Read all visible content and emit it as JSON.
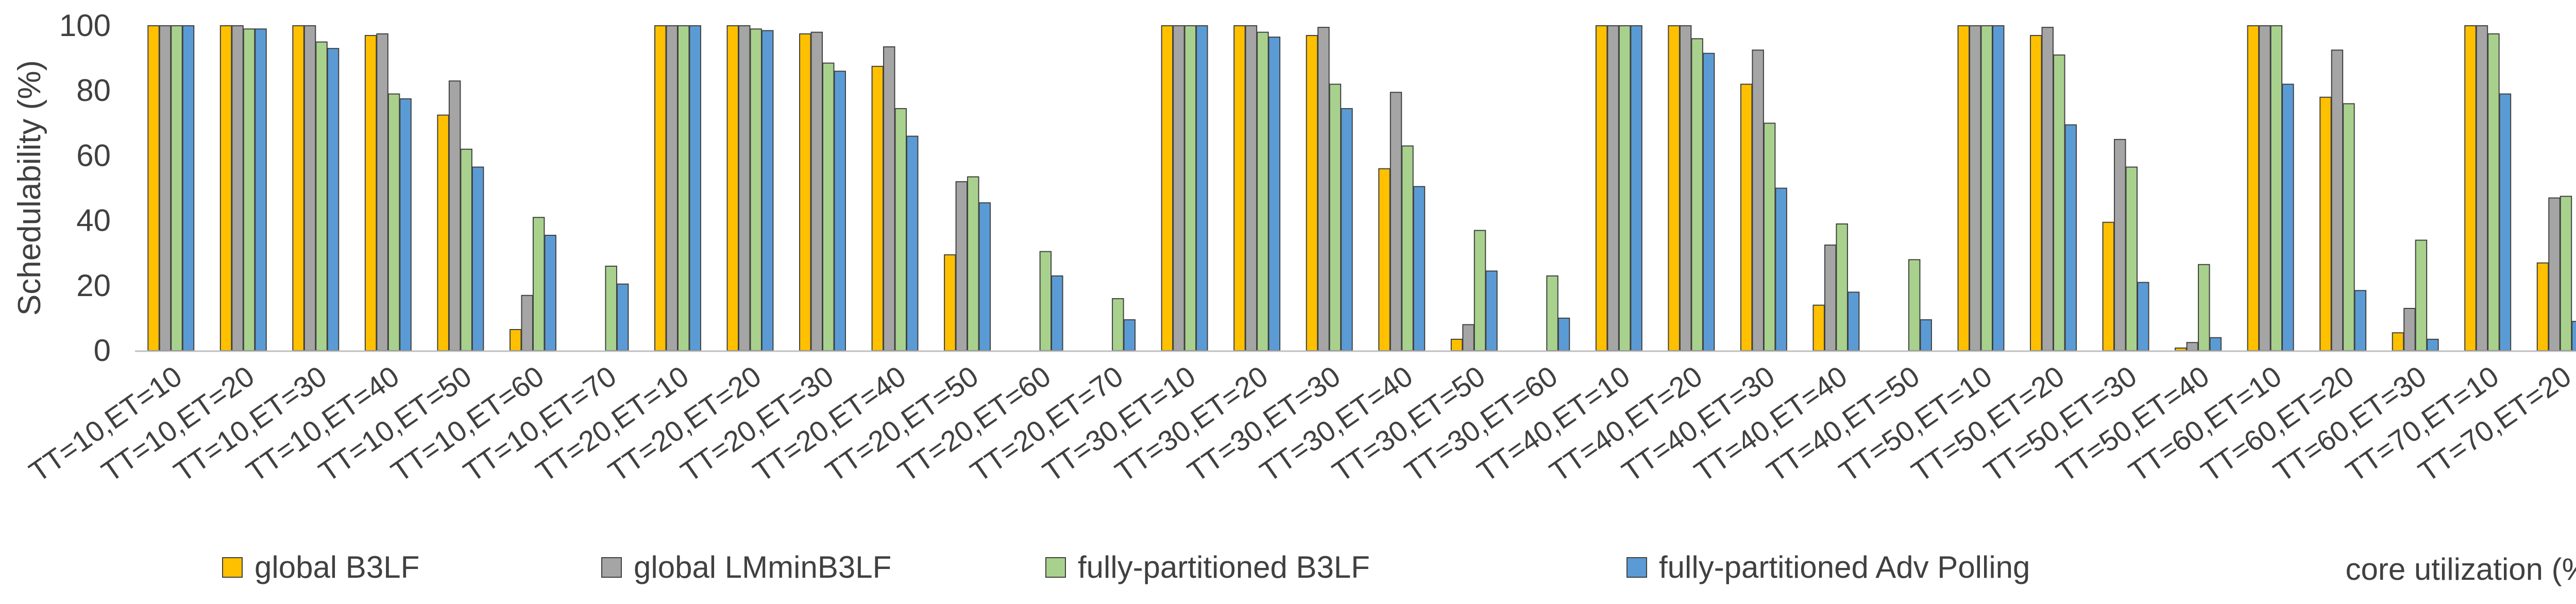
{
  "chart_data": {
    "type": "bar",
    "title": "",
    "xlabel": "core utilization (%)",
    "ylabel": "Schedulability (%)",
    "ylim": [
      0,
      100
    ],
    "yticks": [
      0,
      20,
      40,
      60,
      80,
      100
    ],
    "grid": false,
    "legend_position": "bottom",
    "categories": [
      "TT=10,ET=10",
      "TT=10,ET=20",
      "TT=10,ET=30",
      "TT=10,ET=40",
      "TT=10,ET=50",
      "TT=10,ET=60",
      "TT=10,ET=70",
      "TT=20,ET=10",
      "TT=20,ET=20",
      "TT=20,ET=30",
      "TT=20,ET=40",
      "TT=20,ET=50",
      "TT=20,ET=60",
      "TT=20,ET=70",
      "TT=30,ET=10",
      "TT=30,ET=20",
      "TT=30,ET=30",
      "TT=30,ET=40",
      "TT=30,ET=50",
      "TT=30,ET=60",
      "TT=40,ET=10",
      "TT=40,ET=20",
      "TT=40,ET=30",
      "TT=40,ET=40",
      "TT=40,ET=50",
      "TT=50,ET=10",
      "TT=50,ET=20",
      "TT=50,ET=30",
      "TT=50,ET=40",
      "TT=60,ET=10",
      "TT=60,ET=20",
      "TT=60,ET=30",
      "TT=70,ET=10",
      "TT=70,ET=20"
    ],
    "series": [
      {
        "name": "global B3LF",
        "color": "#FFC000",
        "values": [
          100,
          100,
          100,
          97,
          72.5,
          6.5,
          0,
          100,
          100,
          97.5,
          87.5,
          29.5,
          0,
          0,
          100,
          100,
          97,
          56,
          3.5,
          0,
          100,
          100,
          82,
          14,
          0,
          100,
          97,
          39.5,
          0.8,
          100,
          78,
          5.5,
          100,
          27
        ]
      },
      {
        "name": "global LMminB3LF",
        "color": "#A5A5A5",
        "values": [
          100,
          100,
          100,
          97.5,
          83,
          17,
          0,
          100,
          100,
          98,
          93.5,
          52,
          0,
          0,
          100,
          100,
          99.5,
          79.5,
          8,
          0,
          100,
          100,
          92.5,
          32.5,
          0,
          100,
          99.5,
          65,
          2.5,
          100,
          92.5,
          13,
          100,
          47
        ]
      },
      {
        "name": "fully-partitioned B3LF",
        "color": "#A9D18E",
        "values": [
          100,
          99,
          95,
          79,
          62,
          41,
          26,
          100,
          99,
          88.5,
          74.5,
          53.5,
          30.5,
          16,
          100,
          98,
          82,
          63,
          37,
          23,
          100,
          96,
          70,
          39,
          28,
          100,
          91,
          56.5,
          26.5,
          100,
          76,
          34,
          97.5,
          47.5
        ]
      },
      {
        "name": "fully-partitioned Adv Polling",
        "color": "#5B9BD5",
        "values": [
          100,
          99,
          93,
          77.5,
          56.5,
          35.5,
          20.5,
          100,
          98.5,
          86,
          66,
          45.5,
          23,
          9.5,
          100,
          96.5,
          74.5,
          50.5,
          24.5,
          10,
          100,
          91.5,
          50,
          18,
          9.5,
          100,
          69.5,
          21,
          4,
          82,
          18.5,
          3.5,
          79,
          9
        ]
      }
    ]
  }
}
